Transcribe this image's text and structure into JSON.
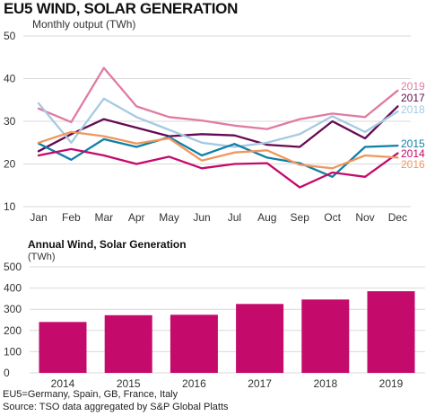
{
  "title": "EU5 WIND, SOLAR GENERATION",
  "footnote": "EU5=Germany, Spain, GB, France, Italy",
  "source": "Source: TSO data aggregated by S&P Global Platts",
  "chart_data": [
    {
      "type": "line",
      "subtitle": "Monthly output (TWh)",
      "x": [
        "Jan",
        "Feb",
        "Mar",
        "Apr",
        "May",
        "Jun",
        "Jul",
        "Aug",
        "Sep",
        "Oct",
        "Nov",
        "Dec"
      ],
      "ylim": [
        10,
        50
      ],
      "yticks": [
        10,
        20,
        30,
        40,
        50
      ],
      "grid": true,
      "legend_placement": "right, at line ends",
      "series": [
        {
          "name": "2019",
          "color": "#e07ba3",
          "values": [
            33.0,
            29.8,
            42.5,
            33.5,
            31.0,
            30.2,
            29.0,
            28.2,
            30.5,
            31.8,
            31.0,
            37.2
          ]
        },
        {
          "name": "2017",
          "color": "#650a52",
          "values": [
            23.0,
            27.0,
            30.5,
            28.5,
            26.5,
            27.0,
            26.7,
            24.5,
            24.0,
            30.0,
            26.0,
            33.5
          ]
        },
        {
          "name": "2018",
          "color": "#a6c9e2",
          "values": [
            34.2,
            25.0,
            35.3,
            31.0,
            28.0,
            25.0,
            24.0,
            25.0,
            27.0,
            31.2,
            27.5,
            32.3
          ]
        },
        {
          "name": "2015",
          "color": "#0f7fa6",
          "values": [
            24.8,
            21.0,
            25.8,
            24.0,
            26.3,
            22.0,
            24.7,
            21.5,
            20.2,
            17.0,
            24.0,
            24.3
          ]
        },
        {
          "name": "2014",
          "color": "#c40a6b",
          "values": [
            22.0,
            23.5,
            22.0,
            20.0,
            21.7,
            19.0,
            20.0,
            20.2,
            14.5,
            18.0,
            17.0,
            22.5
          ]
        },
        {
          "name": "2016",
          "color": "#f0975d",
          "values": [
            25.0,
            27.5,
            26.5,
            24.8,
            26.0,
            20.8,
            22.7,
            23.2,
            19.8,
            19.0,
            22.0,
            21.5
          ]
        }
      ]
    },
    {
      "type": "bar",
      "title": "Annual Wind, Solar Generation",
      "ylabel": "(TWh)",
      "categories": [
        "2014",
        "2015",
        "2016",
        "2017",
        "2018",
        "2019"
      ],
      "values": [
        240,
        272,
        274,
        325,
        346,
        385
      ],
      "ylim": [
        0,
        500
      ],
      "yticks": [
        0,
        100,
        200,
        300,
        400,
        500
      ],
      "grid": true,
      "color": "#c40a6b"
    }
  ]
}
